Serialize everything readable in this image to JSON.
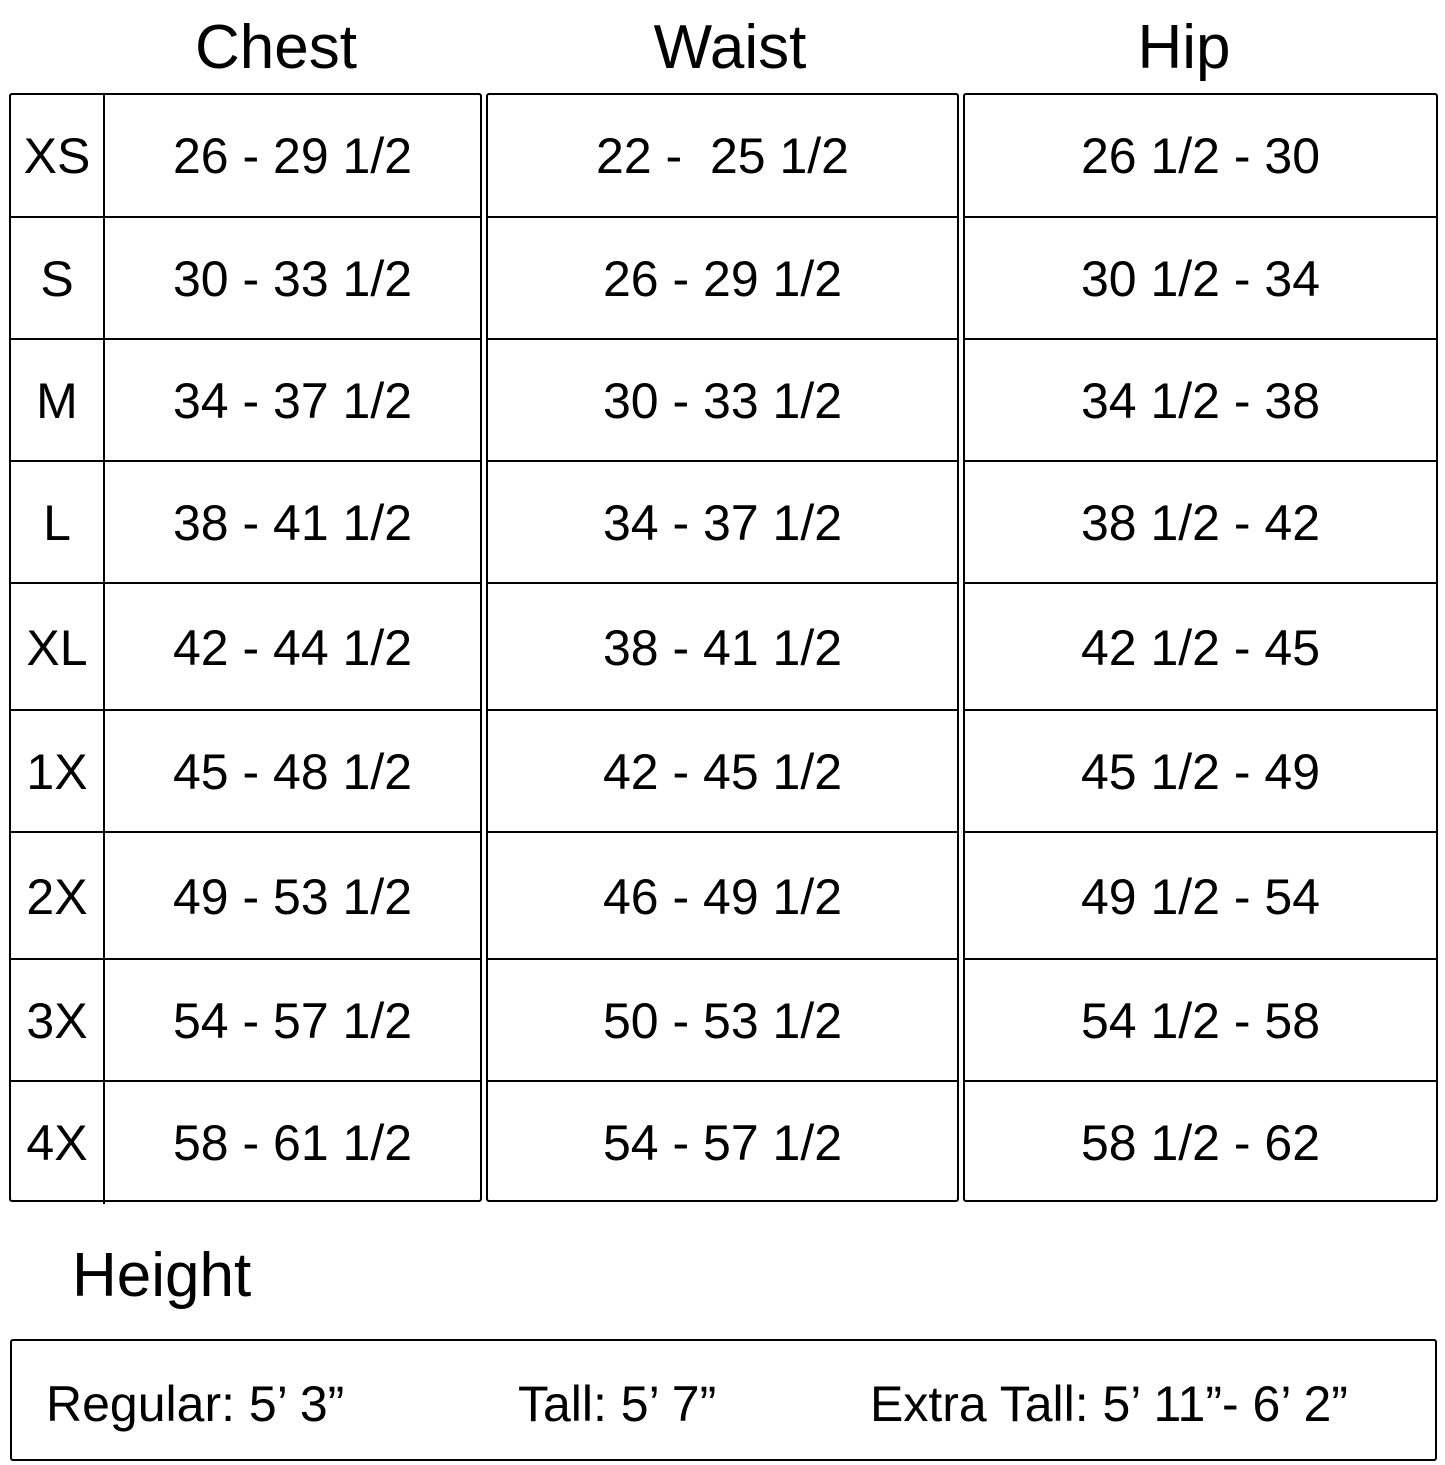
{
  "headers": {
    "chest": "Chest",
    "waist": "Waist",
    "hip": "Hip"
  },
  "rows": [
    {
      "size": "XS",
      "chest": "26 - 29 1/2",
      "waist": "22 -  25 1/2",
      "hip": "26 1/2 - 30"
    },
    {
      "size": "S",
      "chest": "30 - 33 1/2",
      "waist": "26 - 29 1/2",
      "hip": "30 1/2 - 34"
    },
    {
      "size": "M",
      "chest": "34 - 37 1/2",
      "waist": "30 - 33 1/2",
      "hip": "34 1/2 - 38"
    },
    {
      "size": "L",
      "chest": "38 - 41 1/2",
      "waist": "34 - 37 1/2",
      "hip": "38 1/2 - 42"
    },
    {
      "size": "XL",
      "chest": "42 - 44 1/2",
      "waist": "38 - 41 1/2",
      "hip": "42 1/2 - 45"
    },
    {
      "size": "1X",
      "chest": "45 - 48 1/2",
      "waist": "42 - 45 1/2",
      "hip": "45 1/2 - 49"
    },
    {
      "size": "2X",
      "chest": "49 - 53 1/2",
      "waist": "46 - 49 1/2",
      "hip": "49 1/2 - 54"
    },
    {
      "size": "3X",
      "chest": "54 - 57 1/2",
      "waist": "50 - 53 1/2",
      "hip": "54 1/2 - 58"
    },
    {
      "size": "4X",
      "chest": "58 - 61 1/2",
      "waist": "54 - 57 1/2",
      "hip": "58 1/2 - 62"
    }
  ],
  "height": {
    "title": "Height",
    "regular": "Regular: 5’ 3”",
    "tall": "Tall: 5’ 7”",
    "extra_tall": "Extra Tall: 5’ 11”- 6’ 2”"
  }
}
